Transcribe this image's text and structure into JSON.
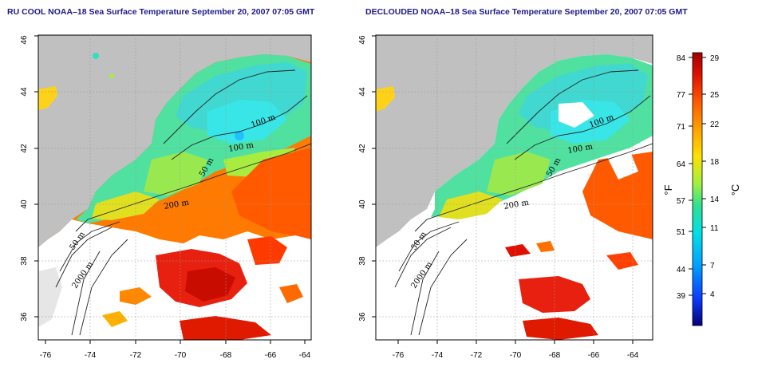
{
  "titles": {
    "left": "RU COOL NOAA–18 Sea Surface Temperature September 20, 2007 07:05 GMT",
    "right": "DECLOUDED NOAA–18 Sea Surface Temperature September 20, 2007 07:05 GMT"
  },
  "axes": {
    "lon_ticks": [
      "-76",
      "-74",
      "-72",
      "-70",
      "-68",
      "-66",
      "-64"
    ],
    "lat_ticks": [
      "36",
      "38",
      "40",
      "42",
      "44",
      "46"
    ]
  },
  "contours": {
    "left": [
      "100 m",
      "100 m",
      "50 m",
      "200 m",
      "50 m",
      "2000 m"
    ],
    "right": [
      "100 m",
      "100 m",
      "50 m",
      "200 m",
      "50 m",
      "2000 m"
    ]
  },
  "colorbar": {
    "fahrenheit": [
      "84",
      "77",
      "71",
      "64",
      "57",
      "51",
      "44",
      "39"
    ],
    "celsius": [
      "29",
      "25",
      "22",
      "18",
      "14",
      "11",
      "7",
      "4"
    ],
    "unit_f": "°F",
    "unit_c": "°C",
    "colors": [
      "#08007a",
      "#0a3cff",
      "#00a0ff",
      "#00e0e8",
      "#30e090",
      "#a0f040",
      "#ffe000",
      "#ffa000",
      "#ff5a00",
      "#e01000",
      "#a00000"
    ]
  },
  "colors": {
    "land": "#c0c0c0",
    "cloud": "#ffffff",
    "title": "#1a1a8c"
  }
}
